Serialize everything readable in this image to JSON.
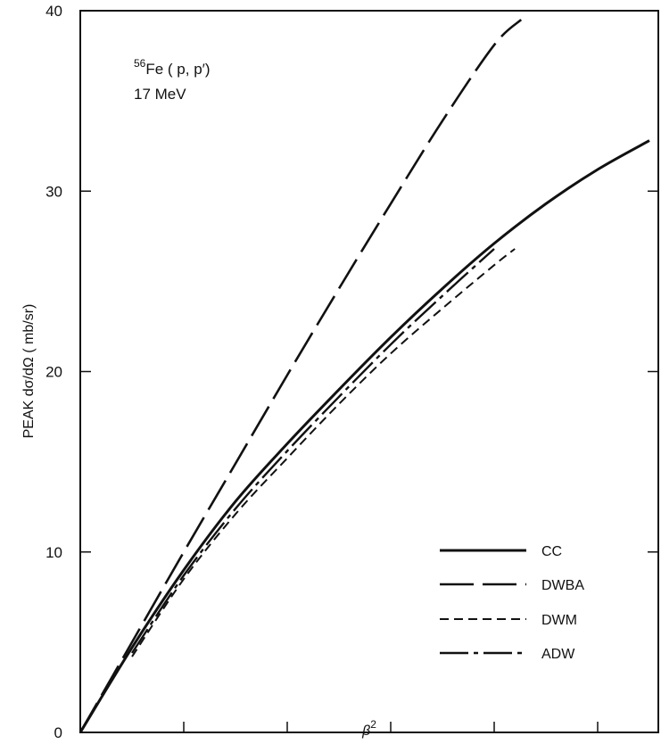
{
  "chart_data": {
    "type": "line",
    "annotation": {
      "reaction_sup": "56",
      "reaction": "Fe ( p, p′)",
      "energy": "17 MeV"
    },
    "ylabel": "PEAK dσ/dΩ ( mb/sr)",
    "xlabel_base": "β",
    "xlabel_sup": "2",
    "xlim": [
      0,
      0.275
    ],
    "ylim": [
      0,
      40
    ],
    "x_ticks": [
      "0",
      "0.05",
      "0.10",
      "0.15",
      "0.20",
      "0.25"
    ],
    "y_ticks": [
      "0",
      "10",
      "20",
      "30",
      "40"
    ],
    "grid": false,
    "legend_position": "lower-right",
    "series": [
      {
        "name": "CC",
        "style": "solid",
        "x": [
          0,
          0.025,
          0.05,
          0.075,
          0.1,
          0.125,
          0.15,
          0.175,
          0.2,
          0.225,
          0.25,
          0.275
        ],
        "y": [
          0,
          4.7,
          9.0,
          12.8,
          16.0,
          19.0,
          21.9,
          24.6,
          27.1,
          29.3,
          31.2,
          32.8
        ]
      },
      {
        "name": "DWBA",
        "style": "long-dash",
        "x": [
          0,
          0.025,
          0.05,
          0.075,
          0.1,
          0.125,
          0.15,
          0.175,
          0.2,
          0.213
        ],
        "y": [
          0,
          5.0,
          10.0,
          14.9,
          19.8,
          24.6,
          29.3,
          33.9,
          38.1,
          39.5
        ]
      },
      {
        "name": "DWM",
        "style": "short-dash",
        "x": [
          0.025,
          0.05,
          0.075,
          0.1,
          0.125,
          0.15,
          0.175,
          0.2,
          0.21
        ],
        "y": [
          4.2,
          8.5,
          12.1,
          15.2,
          18.2,
          21.0,
          23.5,
          25.9,
          26.8
        ]
      },
      {
        "name": "ADW",
        "style": "dash-dot",
        "x": [
          0.025,
          0.05,
          0.075,
          0.1,
          0.125,
          0.15,
          0.175,
          0.2
        ],
        "y": [
          4.4,
          8.7,
          12.4,
          15.6,
          18.6,
          21.5,
          24.2,
          26.8
        ]
      }
    ]
  }
}
